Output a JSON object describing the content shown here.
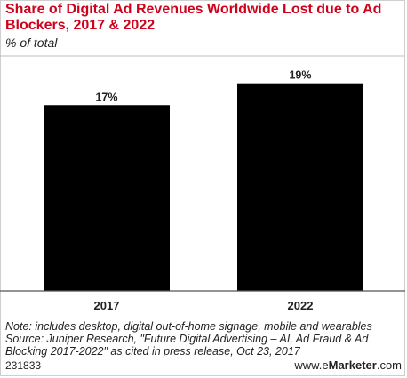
{
  "header": {
    "title": "Share of Digital Ad Revenues Worldwide Lost due to Ad Blockers, 2017 & 2022",
    "subtitle": "% of total"
  },
  "chart_data": {
    "type": "bar",
    "categories": [
      "2017",
      "2022"
    ],
    "values": [
      17,
      19
    ],
    "value_labels": [
      "17%",
      "19%"
    ],
    "title": "Share of Digital Ad Revenues Worldwide Lost due to Ad Blockers, 2017 & 2022",
    "subtitle": "% of total",
    "xlabel": "",
    "ylabel": "",
    "ylim": [
      0,
      21.5
    ],
    "grid": false,
    "bar_color": "#000000"
  },
  "footer": {
    "note": "Note: includes desktop, digital out-of-home signage, mobile and wearables",
    "source_line1": "Source: Juniper Research, \"Future Digital Advertising – AI, Ad Fraud & Ad",
    "source_line2": "Blocking 2017-2022\" as cited in press release, Oct 23, 2017",
    "chart_id": "231833",
    "brand_prefix": "www.",
    "brand_symbol": "e",
    "brand_name": "Marketer",
    "brand_suffix": ".com"
  }
}
